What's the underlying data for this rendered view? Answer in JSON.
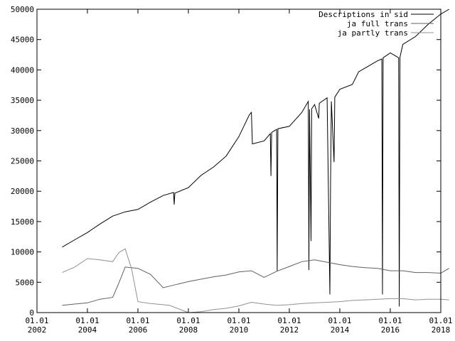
{
  "chart_data": {
    "type": "line",
    "title": "",
    "xlabel": "",
    "ylabel": "",
    "xlim": [
      "2002-01-01",
      "2018-01-01"
    ],
    "ylim": [
      0,
      50000
    ],
    "grid": false,
    "legend_position": "top-right",
    "x_ticks": [
      {
        "line1": "01.01",
        "line2": "2002",
        "date": "2002-01-01"
      },
      {
        "line1": "01.01",
        "line2": "2004",
        "date": "2004-01-01"
      },
      {
        "line1": "01.01",
        "line2": "2006",
        "date": "2006-01-01"
      },
      {
        "line1": "01.01",
        "line2": "2008",
        "date": "2008-01-01"
      },
      {
        "line1": "01.01",
        "line2": "2010",
        "date": "2010-01-01"
      },
      {
        "line1": "01.01",
        "line2": "2012",
        "date": "2012-01-01"
      },
      {
        "line1": "01.01",
        "line2": "2014",
        "date": "2014-01-01"
      },
      {
        "line1": "01.01",
        "line2": "2016",
        "date": "2016-01-01"
      },
      {
        "line1": "01.01",
        "line2": "2018",
        "date": "2018-01-01"
      }
    ],
    "y_ticks": [
      0,
      5000,
      10000,
      15000,
      20000,
      25000,
      30000,
      35000,
      40000,
      45000,
      50000
    ],
    "series": [
      {
        "name": "Descriptions in sid",
        "color": "#000000",
        "points": [
          [
            "2003-01-01",
            10800
          ],
          [
            "2003-07-01",
            12000
          ],
          [
            "2004-01-01",
            13200
          ],
          [
            "2004-07-01",
            14600
          ],
          [
            "2005-01-01",
            15900
          ],
          [
            "2005-07-01",
            16600
          ],
          [
            "2006-01-01",
            17000
          ],
          [
            "2006-07-01",
            18200
          ],
          [
            "2007-01-01",
            19300
          ],
          [
            "2007-06-01",
            19800
          ],
          [
            "2007-06-10",
            17800
          ],
          [
            "2007-06-20",
            19700
          ],
          [
            "2008-01-01",
            20600
          ],
          [
            "2008-07-01",
            22600
          ],
          [
            "2009-01-01",
            24000
          ],
          [
            "2009-07-01",
            25800
          ],
          [
            "2010-01-01",
            29000
          ],
          [
            "2010-06-01",
            32600
          ],
          [
            "2010-07-01",
            33000
          ],
          [
            "2010-07-15",
            27800
          ],
          [
            "2011-01-01",
            28300
          ],
          [
            "2011-04-01",
            29500
          ],
          [
            "2011-04-10",
            22500
          ],
          [
            "2011-04-20",
            29700
          ],
          [
            "2011-07-01",
            30200
          ],
          [
            "2011-07-10",
            6800
          ],
          [
            "2011-07-20",
            30300
          ],
          [
            "2012-01-01",
            30700
          ],
          [
            "2012-07-01",
            33000
          ],
          [
            "2012-10-01",
            34800
          ],
          [
            "2012-10-10",
            7000
          ],
          [
            "2012-10-20",
            33500
          ],
          [
            "2012-11-10",
            11800
          ],
          [
            "2012-11-20",
            33600
          ],
          [
            "2013-01-01",
            34300
          ],
          [
            "2013-03-01",
            32000
          ],
          [
            "2013-03-10",
            34500
          ],
          [
            "2013-07-01",
            35400
          ],
          [
            "2013-08-10",
            3000
          ],
          [
            "2013-08-20",
            22000
          ],
          [
            "2013-09-01",
            34800
          ],
          [
            "2013-10-10",
            24800
          ],
          [
            "2013-10-20",
            35500
          ],
          [
            "2014-01-01",
            36800
          ],
          [
            "2014-07-01",
            37600
          ],
          [
            "2014-10-01",
            39700
          ],
          [
            "2015-01-01",
            40300
          ],
          [
            "2015-07-01",
            41500
          ],
          [
            "2015-09-01",
            41800
          ],
          [
            "2015-09-10",
            3000
          ],
          [
            "2015-09-20",
            42000
          ],
          [
            "2016-01-01",
            42800
          ],
          [
            "2016-05-01",
            42000
          ],
          [
            "2016-05-10",
            1000
          ],
          [
            "2016-05-20",
            42100
          ],
          [
            "2016-07-01",
            44200
          ],
          [
            "2017-01-01",
            45500
          ],
          [
            "2017-07-01",
            47500
          ],
          [
            "2018-01-01",
            49200
          ],
          [
            "2018-05-01",
            50000
          ]
        ]
      },
      {
        "name": "ja full trans",
        "color": "#606060",
        "points": [
          [
            "2003-01-01",
            1200
          ],
          [
            "2003-07-01",
            1400
          ],
          [
            "2004-01-01",
            1600
          ],
          [
            "2004-07-01",
            2200
          ],
          [
            "2005-01-01",
            2500
          ],
          [
            "2005-04-01",
            4900
          ],
          [
            "2005-07-01",
            7500
          ],
          [
            "2006-01-01",
            7300
          ],
          [
            "2006-07-01",
            6300
          ],
          [
            "2007-01-01",
            4100
          ],
          [
            "2007-07-01",
            4600
          ],
          [
            "2008-01-01",
            5100
          ],
          [
            "2008-07-01",
            5500
          ],
          [
            "2009-01-01",
            5900
          ],
          [
            "2009-07-01",
            6200
          ],
          [
            "2010-01-01",
            6700
          ],
          [
            "2010-07-01",
            6900
          ],
          [
            "2011-01-01",
            5800
          ],
          [
            "2011-07-01",
            6800
          ],
          [
            "2012-01-01",
            7600
          ],
          [
            "2012-07-01",
            8400
          ],
          [
            "2013-01-01",
            8700
          ],
          [
            "2013-07-01",
            8300
          ],
          [
            "2014-01-01",
            7900
          ],
          [
            "2014-07-01",
            7600
          ],
          [
            "2015-01-01",
            7400
          ],
          [
            "2015-07-01",
            7300
          ],
          [
            "2016-01-01",
            6900
          ],
          [
            "2016-07-01",
            6900
          ],
          [
            "2017-01-01",
            6600
          ],
          [
            "2017-07-01",
            6600
          ],
          [
            "2018-01-01",
            6500
          ],
          [
            "2018-05-01",
            7300
          ]
        ]
      },
      {
        "name": "ja partly trans",
        "color": "#909090",
        "points": [
          [
            "2003-01-01",
            6600
          ],
          [
            "2003-07-01",
            7500
          ],
          [
            "2004-01-01",
            8900
          ],
          [
            "2004-07-01",
            8700
          ],
          [
            "2005-01-01",
            8400
          ],
          [
            "2005-04-01",
            9900
          ],
          [
            "2005-07-01",
            10500
          ],
          [
            "2005-10-01",
            7200
          ],
          [
            "2006-01-01",
            1800
          ],
          [
            "2006-07-01",
            1500
          ],
          [
            "2007-01-01",
            1300
          ],
          [
            "2007-04-01",
            1200
          ],
          [
            "2008-01-01",
            0
          ],
          [
            "2008-07-01",
            150
          ],
          [
            "2009-01-01",
            500
          ],
          [
            "2009-07-01",
            700
          ],
          [
            "2010-01-01",
            1100
          ],
          [
            "2010-07-01",
            1700
          ],
          [
            "2011-01-01",
            1400
          ],
          [
            "2011-07-01",
            1200
          ],
          [
            "2012-01-01",
            1300
          ],
          [
            "2012-07-01",
            1500
          ],
          [
            "2013-01-01",
            1600
          ],
          [
            "2013-07-01",
            1700
          ],
          [
            "2014-01-01",
            1800
          ],
          [
            "2014-07-01",
            2000
          ],
          [
            "2015-01-01",
            2100
          ],
          [
            "2015-07-01",
            2200
          ],
          [
            "2016-01-01",
            2300
          ],
          [
            "2016-07-01",
            2300
          ],
          [
            "2017-01-01",
            2100
          ],
          [
            "2017-07-01",
            2200
          ],
          [
            "2018-01-01",
            2200
          ],
          [
            "2018-05-01",
            2100
          ]
        ]
      }
    ]
  }
}
